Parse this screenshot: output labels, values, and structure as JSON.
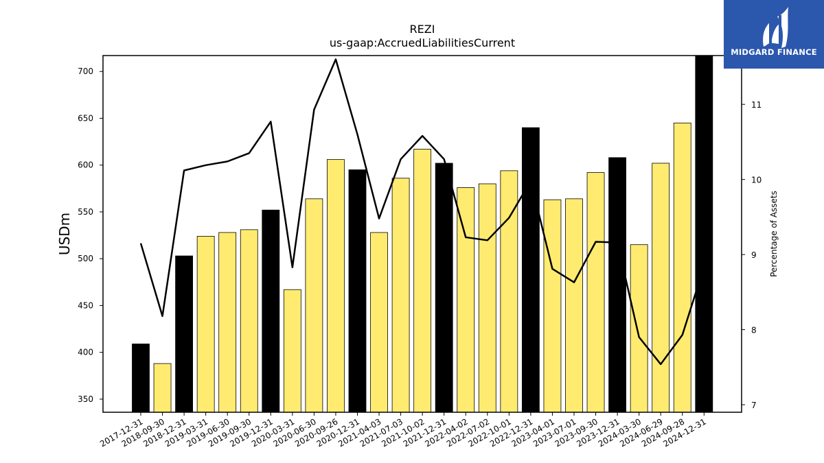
{
  "chart_data": {
    "type": "bar",
    "title": "REZI",
    "subtitle": "us-gaap:AccruedLiabilitiesCurrent",
    "ylabel": "USDm",
    "y2label": "Percentage of Assets",
    "ylim": [
      336,
      717
    ],
    "y2lim": [
      6.9,
      11.65
    ],
    "yticks": [
      350,
      400,
      450,
      500,
      550,
      600,
      650,
      700
    ],
    "y2ticks": [
      7,
      8,
      9,
      10,
      11
    ],
    "categories": [
      "2017-12-31",
      "2018-09-30",
      "2018-12-31",
      "2019-03-31",
      "2019-06-30",
      "2019-09-30",
      "2019-12-31",
      "2020-03-31",
      "2020-06-30",
      "2020-09-26",
      "2020-12-31",
      "2021-04-03",
      "2021-07-03",
      "2021-10-02",
      "2021-12-31",
      "2022-04-02",
      "2022-07-02",
      "2022-10-01",
      "2022-12-31",
      "2023-04-01",
      "2023-07-01",
      "2023-09-30",
      "2023-12-31",
      "2024-03-30",
      "2024-06-29",
      "2024-09-28",
      "2024-12-31"
    ],
    "series": [
      {
        "type": "bar",
        "values": [
          409,
          388,
          503,
          524,
          528,
          531,
          552,
          467,
          564,
          606,
          595,
          528,
          586,
          617,
          602,
          576,
          580,
          594,
          640,
          563,
          564,
          592,
          608,
          515,
          602,
          645,
          717
        ],
        "annual": [
          true,
          false,
          true,
          false,
          false,
          false,
          true,
          false,
          false,
          false,
          true,
          false,
          false,
          false,
          true,
          false,
          false,
          false,
          true,
          false,
          false,
          false,
          true,
          false,
          false,
          false,
          true
        ]
      },
      {
        "type": "line",
        "axis": "right",
        "values": [
          9.15,
          8.18,
          10.12,
          10.19,
          10.24,
          10.35,
          10.77,
          8.83,
          10.93,
          11.6,
          10.6,
          9.48,
          10.27,
          10.58,
          10.27,
          9.23,
          9.19,
          9.49,
          9.98,
          8.81,
          8.63,
          9.17,
          9.16,
          7.9,
          7.54,
          7.93,
          8.84
        ]
      }
    ],
    "colors": {
      "annual_bar": "#000000",
      "quarter_bar": "#ffeb70",
      "line": "#000000"
    },
    "grid": false
  },
  "logo": {
    "text": "MIDGARD FINANCE",
    "background": "#2b57ad"
  }
}
